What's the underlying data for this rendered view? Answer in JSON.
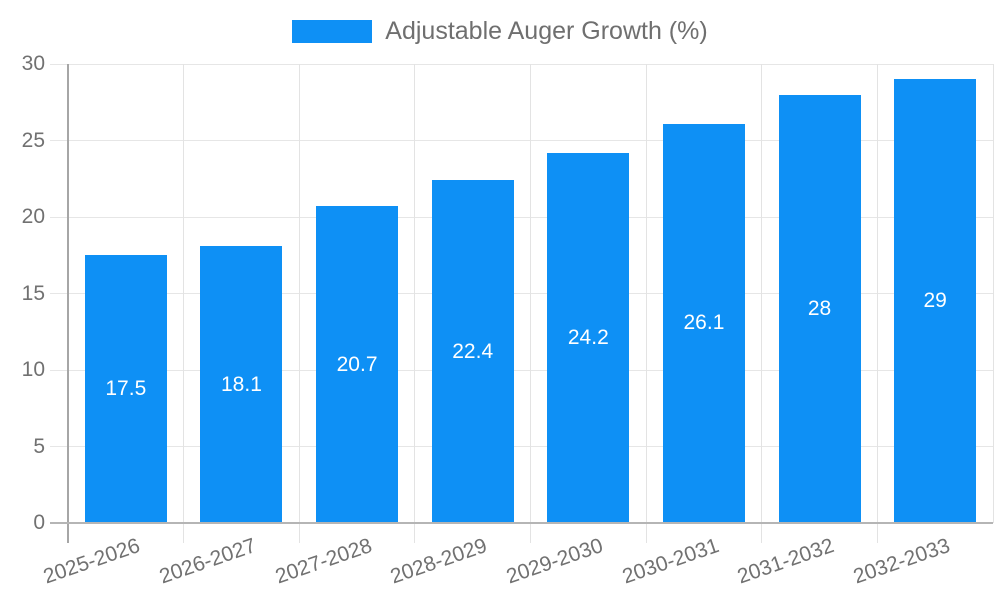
{
  "legend": {
    "label": "Adjustable Auger Growth (%)"
  },
  "chart_data": {
    "type": "bar",
    "title": "Adjustable Auger Growth (%)",
    "categories": [
      "2025-2026",
      "2026-2027",
      "2027-2028",
      "2028-2029",
      "2029-2030",
      "2030-2031",
      "2031-2032",
      "2032-2033"
    ],
    "values": [
      17.5,
      18.1,
      20.7,
      22.4,
      24.2,
      26.1,
      28,
      29
    ],
    "value_labels": [
      "17.5",
      "18.1",
      "20.7",
      "22.4",
      "24.2",
      "26.1",
      "28",
      "29"
    ],
    "xlabel": "",
    "ylabel": "",
    "ylim": [
      0,
      30
    ],
    "y_ticks": [
      0,
      5,
      10,
      15,
      20,
      25,
      30
    ],
    "grid": true,
    "legend_position": "top-center",
    "bar_label_position": "center-inside",
    "colors": {
      "bar": "#0e90f5",
      "bar_label_text": "#ffffff",
      "axis_text": "#717171",
      "legend_text": "#6f6f6f",
      "gridline": "#e6e6e6",
      "y_axis_line": "#a6a6a6",
      "x_axis_line": "#b5b5b5",
      "background": "#ffffff"
    }
  }
}
